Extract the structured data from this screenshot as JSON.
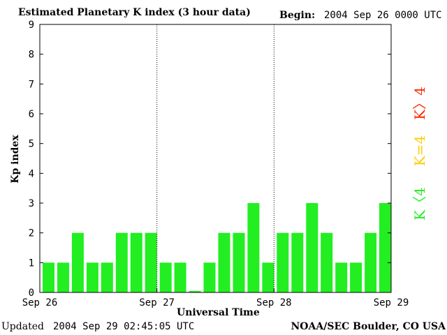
{
  "header": {
    "title": "Estimated Planetary K index (3 hour data)",
    "begin_label": "Begin:",
    "begin_value": "2004 Sep 26 0000 UTC"
  },
  "footer": {
    "updated_label": "Updated",
    "updated_value": "2004 Sep 29 02:45:05 UTC",
    "source": "NOAA/SEC Boulder, CO USA"
  },
  "legend": {
    "high": {
      "label": "K>4",
      "color": "#ff2a00"
    },
    "equal": {
      "label": "K=4",
      "color": "#ffcc00"
    },
    "low": {
      "label": "K<4",
      "color": "#22ee22"
    }
  },
  "chart_data": {
    "type": "bar",
    "title": "Estimated Planetary K index (3 hour data)",
    "xlabel": "Universal Time",
    "ylabel": "Kp index",
    "ylim": [
      0,
      9
    ],
    "yticks": [
      "0",
      "1",
      "2",
      "3",
      "4",
      "5",
      "6",
      "7",
      "8",
      "9"
    ],
    "xticks": [
      "Sep 26",
      "Sep 27",
      "Sep 28",
      "Sep 29"
    ],
    "day_separators": [
      1,
      2
    ],
    "bar_color": "#22ee22",
    "values": [
      1,
      1,
      2,
      1,
      1,
      2,
      2,
      2,
      1,
      1,
      0.05,
      1,
      2,
      2,
      3,
      1,
      2,
      2,
      3,
      2,
      1,
      1,
      2,
      3
    ]
  }
}
